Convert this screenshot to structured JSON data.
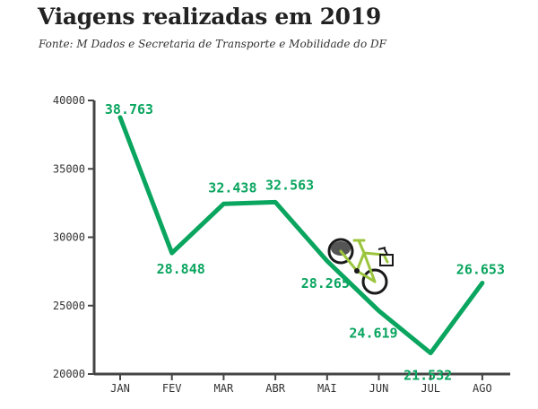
{
  "header": {
    "title": "Viagens realizadas em 2019",
    "source": "Fonte: M Dados e Secretaria de Transporte e Mobilidade do DF"
  },
  "colors": {
    "line": "#0aa55f",
    "label": "#0aa55f",
    "axis": "#444444",
    "text": "#333333"
  },
  "icons": [
    "bicycle-icon"
  ],
  "chart_data": {
    "type": "line",
    "categories": [
      "JAN",
      "FEV",
      "MAR",
      "ABR",
      "MAI",
      "JUN",
      "JUL",
      "AGO"
    ],
    "values": [
      38763,
      28848,
      32438,
      32563,
      28265,
      24619,
      21532,
      26653
    ],
    "value_labels": [
      "38.763",
      "28.848",
      "32.438",
      "32.563",
      "28.265",
      "24.619",
      "21.532",
      "26.653"
    ],
    "yticks": [
      20000,
      25000,
      30000,
      35000,
      40000
    ],
    "ytick_labels": [
      "20000",
      "25000",
      "30000",
      "35000",
      "40000"
    ],
    "ylim": [
      20000,
      40000
    ],
    "grid": false
  }
}
